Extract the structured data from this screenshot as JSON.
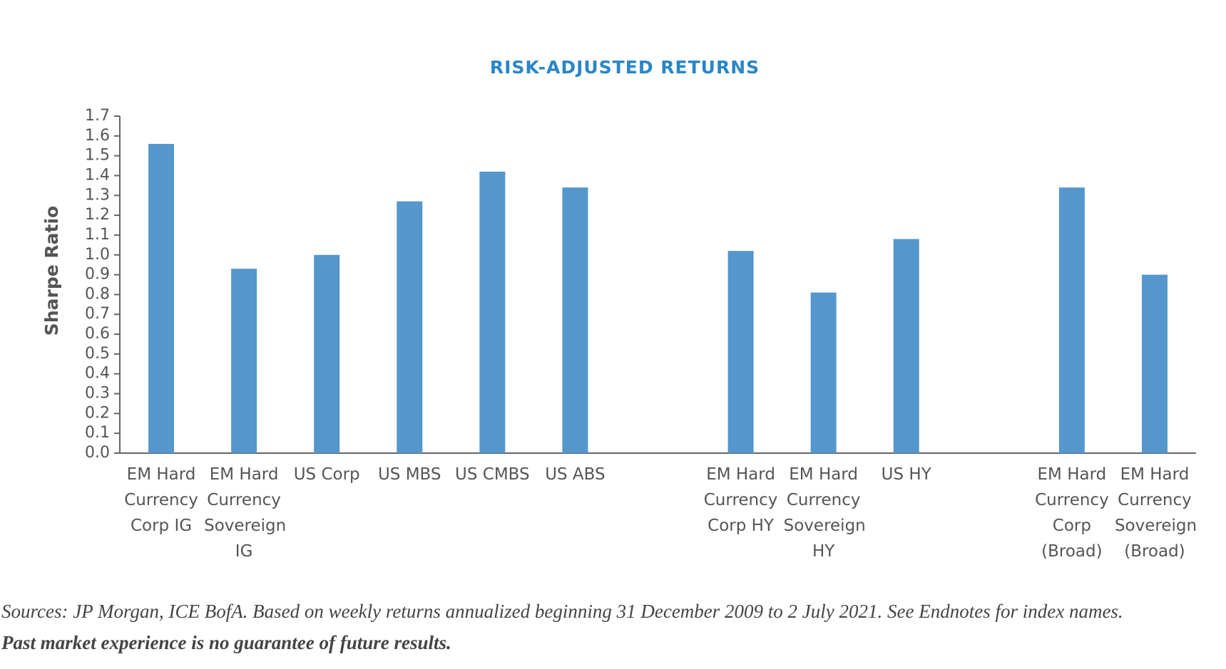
{
  "chart_data": {
    "type": "bar",
    "title": "RISK-ADJUSTED RETURNS",
    "y_label": "Sharpe Ratio",
    "categories": [
      "EM Hard Currency Corp IG",
      "EM Hard Currency Sovereign IG",
      "US Corp",
      "US MBS",
      "US CMBS",
      "US ABS",
      null,
      "EM Hard Currency Corp HY",
      "EM Hard Currency Sovereign HY",
      "US HY",
      null,
      "EM Hard Currency Corp (Broad)",
      "EM Hard Currency Sovereign (Broad)"
    ],
    "values": [
      1.56,
      0.93,
      1.0,
      1.27,
      1.42,
      1.34,
      null,
      1.02,
      0.81,
      1.08,
      null,
      1.34,
      0.9
    ],
    "color": "#5596cd",
    "ylim": [
      0,
      1.7
    ],
    "yticks": [
      {
        "value": 0,
        "label": "0.0"
      },
      0.1,
      0.2,
      0.3,
      0.4,
      0.5,
      0.6,
      0.7,
      0.8,
      0.9,
      {
        "value": 1,
        "label": "1.0"
      },
      1.1,
      1.2,
      1.3,
      1.4,
      1.5,
      1.6,
      1.7
    ],
    "grid": false
  },
  "footnote": {
    "sources": "Sources: JP Morgan, ICE BofA. Based on weekly returns annualized beginning 31 December 2009 to 2 July 2021. See Endnotes for index names.",
    "disclaimer": "Past market experience is no guarantee of future results."
  }
}
